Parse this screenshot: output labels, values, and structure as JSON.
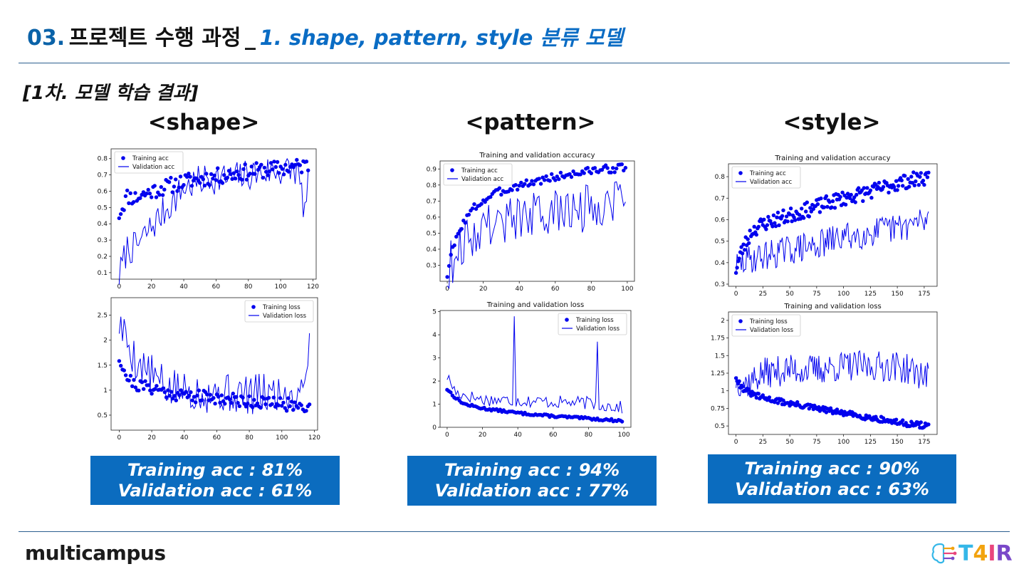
{
  "header": {
    "number": "03.",
    "title": "프로젝트 수행 과정",
    "separator": "_",
    "subtitle": "1. shape, pattern, style 분류 모델"
  },
  "section_title": "[1차. 모델 학습 결과]",
  "columns": [
    {
      "title": "<shape>",
      "result_line1": "Training acc : 81%",
      "result_line2": "Validation acc : 61%"
    },
    {
      "title": "<pattern>",
      "result_line1": "Training acc : 94%",
      "result_line2": "Validation acc : 77%"
    },
    {
      "title": "<style>",
      "result_line1": "Training acc : 90%",
      "result_line2": "Validation acc : 63%"
    }
  ],
  "footer": {
    "brand": "multicampus",
    "badge": "T4IR",
    "badge_colors": [
      "#35b7e8",
      "#f2a30f",
      "#e9457c",
      "#7a49c9"
    ]
  },
  "colors": {
    "accent": "#0b6cbf",
    "series": "#0000ee",
    "rule": "#2c5f8f"
  },
  "chart_data": [
    {
      "type": "line",
      "id": "shape-acc",
      "title": "",
      "xlim": [
        -5,
        122
      ],
      "ylim": [
        0.06,
        0.86
      ],
      "xticks": [
        0,
        20,
        40,
        60,
        80,
        100,
        120
      ],
      "yticks": [
        0.1,
        0.2,
        0.3,
        0.4,
        0.5,
        0.6,
        0.7,
        0.8
      ],
      "legend": "upper left",
      "n": 118,
      "series": [
        {
          "name": "Training acc",
          "style": "dots",
          "anchors": [
            [
              0,
              0.46
            ],
            [
              5,
              0.57
            ],
            [
              10,
              0.56
            ],
            [
              20,
              0.6
            ],
            [
              30,
              0.63
            ],
            [
              40,
              0.66
            ],
            [
              60,
              0.69
            ],
            [
              80,
              0.72
            ],
            [
              100,
              0.74
            ],
            [
              117,
              0.76
            ]
          ],
          "noise": 0.05,
          "seed": 11
        },
        {
          "name": "Validation acc",
          "style": "line",
          "anchors": [
            [
              0,
              0.08
            ],
            [
              5,
              0.25
            ],
            [
              10,
              0.25
            ],
            [
              20,
              0.38
            ],
            [
              30,
              0.5
            ],
            [
              40,
              0.62
            ],
            [
              55,
              0.68
            ],
            [
              70,
              0.68
            ],
            [
              90,
              0.72
            ],
            [
              110,
              0.73
            ],
            [
              115,
              0.48
            ],
            [
              117,
              0.62
            ]
          ],
          "noise": 0.1,
          "seed": 7
        }
      ]
    },
    {
      "type": "line",
      "id": "shape-loss",
      "title": "",
      "xlim": [
        -5,
        122
      ],
      "ylim": [
        0.2,
        2.85
      ],
      "xticks": [
        0,
        20,
        40,
        60,
        80,
        100,
        120
      ],
      "yticks": [
        0.5,
        1.0,
        1.5,
        2.0,
        2.5
      ],
      "legend": "upper right",
      "n": 118,
      "series": [
        {
          "name": "Training loss",
          "style": "dots",
          "anchors": [
            [
              0,
              1.65
            ],
            [
              5,
              1.25
            ],
            [
              10,
              1.1
            ],
            [
              20,
              1.05
            ],
            [
              30,
              0.95
            ],
            [
              40,
              0.9
            ],
            [
              60,
              0.85
            ],
            [
              80,
              0.78
            ],
            [
              100,
              0.72
            ],
            [
              117,
              0.68
            ]
          ],
          "noise": 0.13,
          "seed": 21
        },
        {
          "name": "Validation loss",
          "style": "line",
          "anchors": [
            [
              0,
              2.35
            ],
            [
              10,
              1.6
            ],
            [
              20,
              1.3
            ],
            [
              30,
              1.0
            ],
            [
              40,
              1.0
            ],
            [
              60,
              0.95
            ],
            [
              80,
              0.9
            ],
            [
              100,
              0.95
            ],
            [
              110,
              0.9
            ],
            [
              117,
              1.8
            ]
          ],
          "noise": 0.42,
          "seed": 5
        }
      ]
    },
    {
      "type": "line",
      "id": "pattern-acc",
      "title": "Training and validation accuracy",
      "xlim": [
        -4,
        104
      ],
      "ylim": [
        0.2,
        0.95
      ],
      "xticks": [
        0,
        20,
        40,
        60,
        80,
        100
      ],
      "yticks": [
        0.3,
        0.4,
        0.5,
        0.6,
        0.7,
        0.8,
        0.9
      ],
      "legend": "upper left",
      "n": 100,
      "series": [
        {
          "name": "Training acc",
          "style": "dots",
          "anchors": [
            [
              0,
              0.24
            ],
            [
              3,
              0.4
            ],
            [
              8,
              0.55
            ],
            [
              15,
              0.66
            ],
            [
              25,
              0.74
            ],
            [
              40,
              0.8
            ],
            [
              60,
              0.85
            ],
            [
              80,
              0.89
            ],
            [
              99,
              0.91
            ]
          ],
          "noise": 0.025,
          "seed": 3
        },
        {
          "name": "Validation acc",
          "style": "line",
          "anchors": [
            [
              0,
              0.25
            ],
            [
              5,
              0.4
            ],
            [
              10,
              0.45
            ],
            [
              20,
              0.55
            ],
            [
              40,
              0.6
            ],
            [
              60,
              0.62
            ],
            [
              80,
              0.66
            ],
            [
              99,
              0.76
            ]
          ],
          "noise": 0.15,
          "seed": 9
        }
      ]
    },
    {
      "type": "line",
      "id": "pattern-loss",
      "title": "Training and validation loss",
      "xlim": [
        -4,
        104
      ],
      "ylim": [
        0,
        5.05
      ],
      "xticks": [
        0,
        20,
        40,
        60,
        80,
        100
      ],
      "yticks": [
        0,
        1,
        2,
        3,
        4,
        5
      ],
      "legend": "upper right",
      "n": 100,
      "series": [
        {
          "name": "Training loss",
          "style": "dots",
          "anchors": [
            [
              0,
              1.65
            ],
            [
              5,
              1.25
            ],
            [
              10,
              1.0
            ],
            [
              20,
              0.82
            ],
            [
              40,
              0.62
            ],
            [
              60,
              0.48
            ],
            [
              80,
              0.38
            ],
            [
              99,
              0.28
            ]
          ],
          "noise": 0.05,
          "seed": 13
        },
        {
          "name": "Validation loss",
          "style": "line",
          "anchors": [
            [
              0,
              2.2
            ],
            [
              5,
              1.5
            ],
            [
              20,
              1.2
            ],
            [
              40,
              1.15
            ],
            [
              60,
              1.1
            ],
            [
              80,
              1.05
            ],
            [
              99,
              0.85
            ]
          ],
          "noise": 0.28,
          "seed": 17,
          "spikes": [
            [
              38,
              4.8
            ],
            [
              85,
              3.7
            ]
          ]
        }
      ]
    },
    {
      "type": "line",
      "id": "style-acc",
      "title": "Training and validation accuracy",
      "xlim": [
        -7,
        187
      ],
      "ylim": [
        0.29,
        0.86
      ],
      "xticks": [
        0,
        25,
        50,
        75,
        100,
        125,
        150,
        175
      ],
      "yticks": [
        0.3,
        0.4,
        0.5,
        0.6,
        0.7,
        0.8
      ],
      "legend": "upper left",
      "n": 180,
      "series": [
        {
          "name": "Training acc",
          "style": "dots",
          "anchors": [
            [
              0,
              0.37
            ],
            [
              5,
              0.45
            ],
            [
              15,
              0.55
            ],
            [
              25,
              0.58
            ],
            [
              50,
              0.62
            ],
            [
              75,
              0.66
            ],
            [
              100,
              0.7
            ],
            [
              125,
              0.73
            ],
            [
              150,
              0.77
            ],
            [
              179,
              0.8
            ]
          ],
          "noise": 0.035,
          "seed": 23
        },
        {
          "name": "Validation acc",
          "style": "line",
          "anchors": [
            [
              0,
              0.38
            ],
            [
              15,
              0.42
            ],
            [
              50,
              0.46
            ],
            [
              75,
              0.48
            ],
            [
              100,
              0.52
            ],
            [
              125,
              0.54
            ],
            [
              150,
              0.56
            ],
            [
              179,
              0.6
            ]
          ],
          "noise": 0.07,
          "seed": 29
        }
      ]
    },
    {
      "type": "line",
      "id": "style-loss",
      "title": "Training and validation loss",
      "xlim": [
        -7,
        187
      ],
      "ylim": [
        0.38,
        2.12
      ],
      "xticks": [
        0,
        25,
        50,
        75,
        100,
        125,
        150,
        175
      ],
      "yticks": [
        0.5,
        0.75,
        1.0,
        1.25,
        1.5,
        1.75,
        2.0
      ],
      "legend": "upper left",
      "n": 180,
      "series": [
        {
          "name": "Training loss",
          "style": "dots",
          "anchors": [
            [
              0,
              1.2
            ],
            [
              5,
              1.05
            ],
            [
              15,
              0.95
            ],
            [
              25,
              0.9
            ],
            [
              50,
              0.82
            ],
            [
              75,
              0.75
            ],
            [
              100,
              0.68
            ],
            [
              125,
              0.62
            ],
            [
              150,
              0.55
            ],
            [
              179,
              0.5
            ]
          ],
          "noise": 0.04,
          "seed": 31
        },
        {
          "name": "Validation loss",
          "style": "line",
          "anchors": [
            [
              0,
              1.15
            ],
            [
              10,
              1.1
            ],
            [
              25,
              1.25
            ],
            [
              50,
              1.3
            ],
            [
              75,
              1.3
            ],
            [
              100,
              1.35
            ],
            [
              125,
              1.35
            ],
            [
              150,
              1.35
            ],
            [
              179,
              1.2
            ]
          ],
          "noise": 0.22,
          "seed": 37
        }
      ]
    }
  ]
}
